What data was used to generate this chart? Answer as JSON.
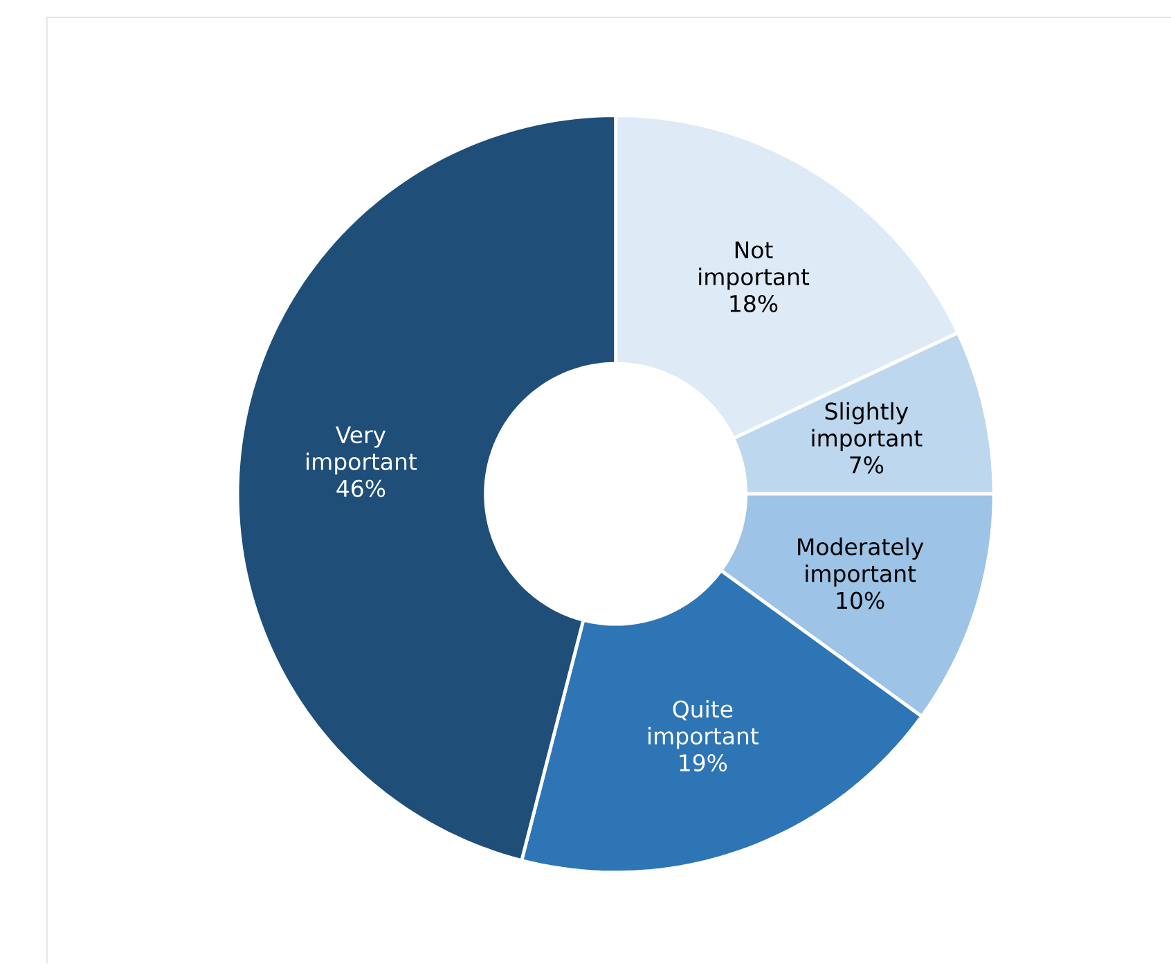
{
  "chart_data": {
    "type": "donut",
    "categories": [
      "Not important",
      "Slightly important",
      "Moderately important",
      "Quite important",
      "Very important"
    ],
    "values": [
      18,
      7,
      10,
      19,
      46
    ],
    "value_labels": [
      "18%",
      "7%",
      "10%",
      "19%",
      "46%"
    ],
    "colors": [
      "#deeaf6",
      "#bdd7ee",
      "#9dc3e6",
      "#2e75b6",
      "#1f4e79"
    ],
    "data_labels": true
  }
}
